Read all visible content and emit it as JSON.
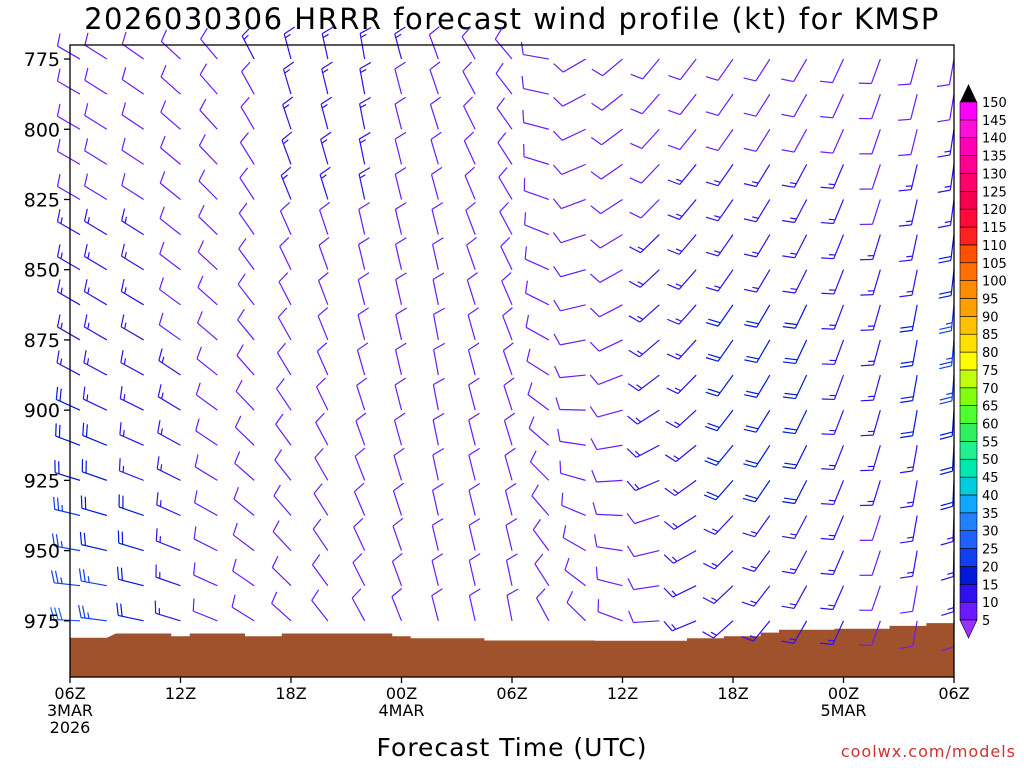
{
  "chart_data": {
    "type": "wind_barb_time_height",
    "title": "2026030306 HRRR forecast wind profile (kt) for KMSP",
    "xlabel": "Forecast Time (UTC)",
    "credit": "coolwx.com/models",
    "y_axis": {
      "ticks": [
        775,
        800,
        825,
        850,
        875,
        900,
        925,
        950,
        975
      ],
      "range_hPa": [
        770,
        995
      ],
      "inverted": true
    },
    "x_axis": {
      "range_hours": [
        0,
        48
      ],
      "ticks": [
        {
          "hour": 0,
          "lines": [
            "06Z",
            "3MAR",
            "2026"
          ]
        },
        {
          "hour": 6,
          "lines": [
            "12Z"
          ]
        },
        {
          "hour": 12,
          "lines": [
            "18Z"
          ]
        },
        {
          "hour": 18,
          "lines": [
            "00Z",
            "4MAR"
          ]
        },
        {
          "hour": 24,
          "lines": [
            "06Z"
          ]
        },
        {
          "hour": 30,
          "lines": [
            "12Z"
          ]
        },
        {
          "hour": 36,
          "lines": [
            "18Z"
          ]
        },
        {
          "hour": 42,
          "lines": [
            "00Z",
            "5MAR"
          ]
        },
        {
          "hour": 48,
          "lines": [
            "06Z"
          ]
        }
      ]
    },
    "colorbar": {
      "levels": [
        5,
        10,
        15,
        20,
        25,
        30,
        35,
        40,
        45,
        50,
        55,
        60,
        65,
        70,
        75,
        80,
        85,
        90,
        95,
        100,
        105,
        110,
        115,
        120,
        125,
        130,
        135,
        140,
        145,
        150
      ],
      "colors": [
        "#9b30ff",
        "#6a1bff",
        "#3010ee",
        "#0018d8",
        "#0f3ff0",
        "#1f60ff",
        "#2080ff",
        "#10a8ff",
        "#00ccdd",
        "#00e8b0",
        "#20f090",
        "#30f060",
        "#50ff30",
        "#80ff10",
        "#c0ff10",
        "#ffff00",
        "#ffe000",
        "#ffc000",
        "#ffa000",
        "#ff8c00",
        "#ff7000",
        "#ff5000",
        "#ff2020",
        "#ff0a3a",
        "#f5004f",
        "#ff006c",
        "#ff0090",
        "#ff00b8",
        "#ff10d8",
        "#ff00ff"
      ],
      "low_arrow_color": "#9b30ff",
      "high_arrow_color": "#000000"
    },
    "ground": {
      "color": "#a0522d",
      "surface_hPa": [
        {
          "hour": 0,
          "p": 981
        },
        {
          "hour": 2,
          "p": 981
        },
        {
          "hour": 2.5,
          "p": 979.5
        },
        {
          "hour": 5.5,
          "p": 979.5
        },
        {
          "hour": 5.5,
          "p": 980.5
        },
        {
          "hour": 6.5,
          "p": 980.5
        },
        {
          "hour": 6.5,
          "p": 979.5
        },
        {
          "hour": 9.5,
          "p": 979.5
        },
        {
          "hour": 9.5,
          "p": 980.5
        },
        {
          "hour": 11.5,
          "p": 980.5
        },
        {
          "hour": 11.5,
          "p": 979.5
        },
        {
          "hour": 17.5,
          "p": 979.5
        },
        {
          "hour": 17.5,
          "p": 980.5
        },
        {
          "hour": 18.5,
          "p": 980.5
        },
        {
          "hour": 18.5,
          "p": 981.2
        },
        {
          "hour": 22.5,
          "p": 981.2
        },
        {
          "hour": 22.5,
          "p": 982
        },
        {
          "hour": 28.5,
          "p": 982
        },
        {
          "hour": 28.5,
          "p": 982.1
        },
        {
          "hour": 33.5,
          "p": 982.1
        },
        {
          "hour": 33.5,
          "p": 981.2
        },
        {
          "hour": 35.5,
          "p": 981.2
        },
        {
          "hour": 35.5,
          "p": 980.5
        },
        {
          "hour": 37.5,
          "p": 980.5
        },
        {
          "hour": 37.5,
          "p": 979.2
        },
        {
          "hour": 38.5,
          "p": 979.2
        },
        {
          "hour": 38.5,
          "p": 978.2
        },
        {
          "hour": 41.5,
          "p": 978.2
        },
        {
          "hour": 41.5,
          "p": 977.8
        },
        {
          "hour": 44.5,
          "p": 977.8
        },
        {
          "hour": 44.5,
          "p": 976.8
        },
        {
          "hour": 46.5,
          "p": 976.8
        },
        {
          "hour": 46.5,
          "p": 975.8
        },
        {
          "hour": 48,
          "p": 975.8
        }
      ]
    },
    "barbs": {
      "hours": [
        0,
        48
      ],
      "levels_hPa": [
        775,
        985
      ],
      "level_step_hPa": 12.5,
      "hour_step": 2,
      "note": "sampled wind profile; direction in degrees (from), speed in kt",
      "direction_keyframes": [
        {
          "hour": 0,
          "dir_top": 300,
          "dir_mid": 300,
          "dir_low": 270
        },
        {
          "hour": 4,
          "dir_top": 305,
          "dir_mid": 300,
          "dir_low": 280
        },
        {
          "hour": 8,
          "dir_top": 320,
          "dir_mid": 310,
          "dir_low": 290
        },
        {
          "hour": 12,
          "dir_top": 345,
          "dir_mid": 330,
          "dir_low": 310
        },
        {
          "hour": 16,
          "dir_top": 350,
          "dir_mid": 345,
          "dir_low": 330
        },
        {
          "hour": 20,
          "dir_top": 340,
          "dir_mid": 350,
          "dir_low": 345
        },
        {
          "hour": 24,
          "dir_top": 320,
          "dir_mid": 340,
          "dir_low": 350
        },
        {
          "hour": 28,
          "dir_top": 240,
          "dir_mid": 260,
          "dir_low": 320
        },
        {
          "hour": 32,
          "dir_top": 220,
          "dir_mid": 230,
          "dir_low": 270
        },
        {
          "hour": 36,
          "dir_top": 215,
          "dir_mid": 215,
          "dir_low": 230
        },
        {
          "hour": 40,
          "dir_top": 210,
          "dir_mid": 205,
          "dir_low": 210
        },
        {
          "hour": 44,
          "dir_top": 200,
          "dir_mid": 195,
          "dir_low": 200
        },
        {
          "hour": 48,
          "dir_top": 190,
          "dir_mid": 185,
          "dir_low": 180
        }
      ],
      "speed_keyframes": [
        {
          "hour": 0,
          "spd_top": 10,
          "spd_mid": 15,
          "spd_low": 30
        },
        {
          "hour": 4,
          "spd_top": 10,
          "spd_mid": 15,
          "spd_low": 20
        },
        {
          "hour": 8,
          "spd_top": 10,
          "spd_mid": 10,
          "spd_low": 10
        },
        {
          "hour": 12,
          "spd_top": 15,
          "spd_mid": 10,
          "spd_low": 10
        },
        {
          "hour": 16,
          "spd_top": 15,
          "spd_mid": 10,
          "spd_low": 10
        },
        {
          "hour": 20,
          "spd_top": 10,
          "spd_mid": 10,
          "spd_low": 10
        },
        {
          "hour": 24,
          "spd_top": 10,
          "spd_mid": 10,
          "spd_low": 10
        },
        {
          "hour": 28,
          "spd_top": 10,
          "spd_mid": 10,
          "spd_low": 10
        },
        {
          "hour": 32,
          "spd_top": 10,
          "spd_mid": 15,
          "spd_low": 10
        },
        {
          "hour": 36,
          "spd_top": 10,
          "spd_mid": 20,
          "spd_low": 15
        },
        {
          "hour": 40,
          "spd_top": 10,
          "spd_mid": 20,
          "spd_low": 15
        },
        {
          "hour": 44,
          "spd_top": 10,
          "spd_mid": 15,
          "spd_low": 10
        },
        {
          "hour": 48,
          "spd_top": 10,
          "spd_mid": 25,
          "spd_low": 10
        }
      ]
    }
  }
}
